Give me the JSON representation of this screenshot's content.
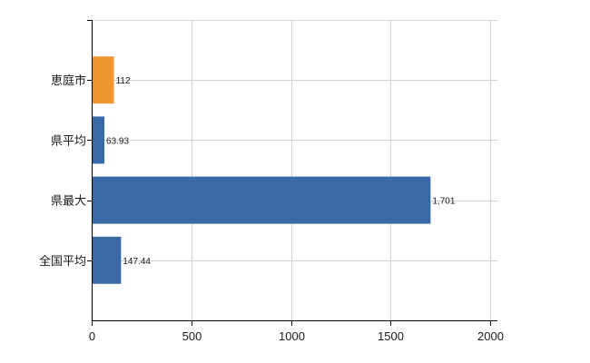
{
  "chart_data": {
    "type": "bar",
    "orientation": "horizontal",
    "categories": [
      "恵庭市",
      "県平均",
      "県最大",
      "全国平均"
    ],
    "values": [
      112,
      63.93,
      1701,
      147.44
    ],
    "value_labels": [
      "112",
      "63.93",
      "1,701",
      "147.44"
    ],
    "bar_colors": [
      "#f0962f",
      "#3a6aa6",
      "#3a6aa6",
      "#3a6aa6"
    ],
    "xlim": [
      0,
      2000
    ],
    "xticks": [
      0,
      500,
      1000,
      1500,
      2000
    ],
    "xtick_labels": [
      "0",
      "500",
      "1000",
      "1500",
      "2000"
    ],
    "grid": true,
    "grid_color": "#d3d3d3",
    "axis_color": "#000000",
    "title": "",
    "xlabel": "",
    "ylabel": ""
  }
}
